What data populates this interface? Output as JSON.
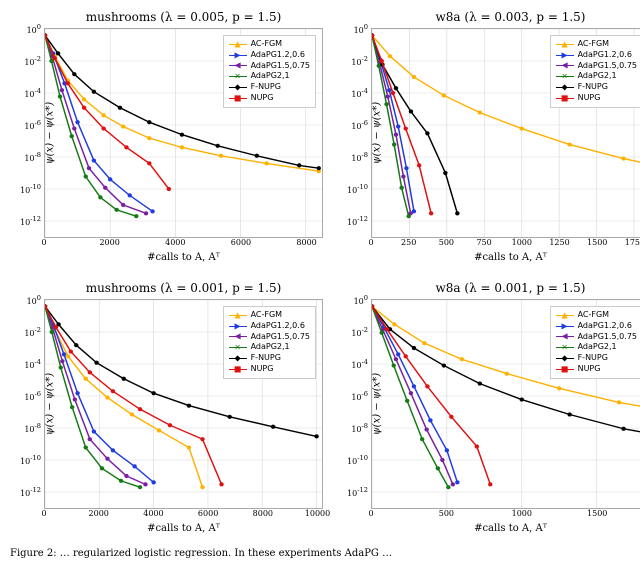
{
  "panels": [
    {
      "title": "mushrooms (λ = 0.005, p = 1.5)",
      "xlabel": "#calls to A, Aᵀ",
      "ylabel": "ψ(x) − ψ(x*)",
      "xlim": [
        0,
        8500
      ],
      "ylim": [
        1e-13,
        1
      ],
      "xtick_step": 2000,
      "ytick_exponents": [
        0,
        -2,
        -4,
        -6,
        -8,
        -10,
        -12
      ],
      "series": [
        {
          "name": "AC-FGM",
          "color": "#ffb100",
          "marker": "▲",
          "x": [
            0,
            300,
            700,
            1200,
            1800,
            2400,
            3200,
            4200,
            5400,
            6800,
            8400
          ],
          "y": [
            0.4,
            0.02,
            0.0006,
            4e-05,
            4e-06,
            8e-07,
            1.5e-07,
            4e-08,
            1.2e-08,
            4e-09,
            1.3e-09
          ]
        },
        {
          "name": "AdaPG1.2,0.6",
          "color": "#1f3cdf",
          "marker": "▶",
          "x": [
            0,
            250,
            600,
            1000,
            1500,
            2000,
            2600,
            3300
          ],
          "y": [
            0.4,
            0.03,
            0.0004,
            1.5e-06,
            6e-09,
            4e-10,
            4e-11,
            4e-12
          ]
        },
        {
          "name": "AdaPG1.5,0.75",
          "color": "#7a1fa2",
          "marker": "◀",
          "x": [
            0,
            220,
            520,
            900,
            1350,
            1850,
            2400,
            3100
          ],
          "y": [
            0.4,
            0.02,
            0.00015,
            6e-07,
            2e-09,
            1.2e-10,
            1e-11,
            3e-12
          ]
        },
        {
          "name": "AdaPG2,1",
          "color": "#147a14",
          "marker": "×",
          "x": [
            0,
            200,
            460,
            820,
            1250,
            1700,
            2200,
            2800
          ],
          "y": [
            0.4,
            0.01,
            6e-05,
            2e-07,
            6e-10,
            3e-11,
            5e-12,
            2e-12
          ]
        },
        {
          "name": "F-NUPG",
          "color": "#000000",
          "marker": "◆",
          "x": [
            0,
            400,
            900,
            1500,
            2300,
            3200,
            4200,
            5300,
            6500,
            7800,
            8400
          ],
          "y": [
            0.4,
            0.03,
            0.0015,
            0.00012,
            1.2e-05,
            1.5e-06,
            2.5e-07,
            5e-08,
            1.2e-08,
            3e-09,
            2e-09
          ]
        },
        {
          "name": "NUPG",
          "color": "#e01010",
          "marker": "■",
          "x": [
            0,
            300,
            700,
            1200,
            1800,
            2500,
            3200,
            3800
          ],
          "y": [
            0.4,
            0.015,
            0.0004,
            1.2e-05,
            6e-07,
            4e-08,
            4e-09,
            1e-10
          ]
        }
      ]
    },
    {
      "title": "w8a (λ = 0.003, p = 1.5)",
      "xlabel": "#calls to A, Aᵀ",
      "ylabel": "ψ(x) − ψ(x*)",
      "xlim": [
        0,
        1850
      ],
      "ylim": [
        1e-13,
        1
      ],
      "xtick_step": 250,
      "ytick_exponents": [
        0,
        -2,
        -4,
        -6,
        -8,
        -10,
        -12
      ],
      "series": [
        {
          "name": "AC-FGM",
          "color": "#ffb100",
          "marker": "▲",
          "x": [
            0,
            120,
            280,
            480,
            720,
            1000,
            1320,
            1680,
            1830
          ],
          "y": [
            0.4,
            0.02,
            0.001,
            7e-05,
            6e-06,
            6e-07,
            6e-08,
            8e-09,
            4e-09
          ]
        },
        {
          "name": "AdaPG1.2,0.6",
          "color": "#1f3cdf",
          "marker": "▶",
          "x": [
            0,
            55,
            115,
            175,
            230,
            280
          ],
          "y": [
            0.4,
            0.012,
            0.00015,
            8e-07,
            2e-09,
            4e-12
          ]
        },
        {
          "name": "AdaPG1.5,0.75",
          "color": "#7a1fa2",
          "marker": "◀",
          "x": [
            0,
            50,
            105,
            160,
            210,
            258
          ],
          "y": [
            0.4,
            0.008,
            6e-05,
            2.5e-07,
            6e-10,
            3e-12
          ]
        },
        {
          "name": "AdaPG2,1",
          "color": "#147a14",
          "marker": "×",
          "x": [
            0,
            45,
            97,
            148,
            198,
            245
          ],
          "y": [
            0.4,
            0.005,
            2e-05,
            6e-08,
            1.2e-10,
            2e-12
          ]
        },
        {
          "name": "F-NUPG",
          "color": "#000000",
          "marker": "◆",
          "x": [
            0,
            70,
            160,
            260,
            370,
            490,
            570
          ],
          "y": [
            0.4,
            0.006,
            0.0002,
            7e-06,
            3e-07,
            1e-09,
            3e-12
          ]
        },
        {
          "name": "NUPG",
          "color": "#e01010",
          "marker": "■",
          "x": [
            0,
            65,
            140,
            225,
            315,
            395
          ],
          "y": [
            0.4,
            0.01,
            0.0001,
            6e-07,
            3e-09,
            3e-12
          ]
        }
      ]
    },
    {
      "title": "mushrooms (λ = 0.001, p = 1.5)",
      "xlabel": "#calls to A, Aᵀ",
      "ylabel": "ψ(x) − ψ(x*)",
      "xlim": [
        0,
        10200
      ],
      "ylim": [
        1e-13,
        1
      ],
      "xtick_step": 2000,
      "ytick_exponents": [
        0,
        -2,
        -4,
        -6,
        -8,
        -10,
        -12
      ],
      "series": [
        {
          "name": "AC-FGM",
          "color": "#ffb100",
          "marker": "▲",
          "x": [
            0,
            350,
            850,
            1500,
            2300,
            3200,
            4200,
            5300,
            5800
          ],
          "y": [
            0.4,
            0.015,
            0.0003,
            1.2e-05,
            8e-07,
            7e-08,
            7e-09,
            6e-10,
            2e-12
          ]
        },
        {
          "name": "AdaPG1.2,0.6",
          "color": "#1f3cdf",
          "marker": "▶",
          "x": [
            0,
            300,
            700,
            1200,
            1800,
            2500,
            3300,
            4000
          ],
          "y": [
            0.4,
            0.03,
            0.0004,
            1.5e-06,
            6e-09,
            4e-10,
            4e-11,
            4e-12
          ]
        },
        {
          "name": "AdaPG1.5,0.75",
          "color": "#7a1fa2",
          "marker": "◀",
          "x": [
            0,
            270,
            640,
            1100,
            1650,
            2300,
            3000,
            3700
          ],
          "y": [
            0.4,
            0.02,
            0.00015,
            6e-07,
            2e-09,
            1.2e-10,
            1e-11,
            3e-12
          ]
        },
        {
          "name": "AdaPG2,1",
          "color": "#147a14",
          "marker": "×",
          "x": [
            0,
            250,
            580,
            1000,
            1500,
            2100,
            2800,
            3500
          ],
          "y": [
            0.4,
            0.01,
            6e-05,
            2e-07,
            6e-10,
            3e-11,
            5e-12,
            2e-12
          ]
        },
        {
          "name": "F-NUPG",
          "color": "#000000",
          "marker": "◆",
          "x": [
            0,
            500,
            1150,
            1900,
            2900,
            4000,
            5300,
            6800,
            8400,
            10000
          ],
          "y": [
            0.4,
            0.03,
            0.0015,
            0.00012,
            1.2e-05,
            1.5e-06,
            2.5e-07,
            5e-08,
            1.2e-08,
            3e-09
          ]
        },
        {
          "name": "NUPG",
          "color": "#e01010",
          "marker": "■",
          "x": [
            0,
            400,
            950,
            1650,
            2500,
            3500,
            4600,
            5800,
            6500
          ],
          "y": [
            0.4,
            0.02,
            0.0006,
            3e-05,
            2e-06,
            1.5e-07,
            1.5e-08,
            2e-09,
            3e-12
          ]
        }
      ]
    },
    {
      "title": "w8a (λ = 0.001, p = 1.5)",
      "xlabel": "#calls to A, Aᵀ",
      "ylabel": "ψ(x) − ψ(x*)",
      "xlim": [
        0,
        1850
      ],
      "ylim": [
        1e-13,
        1
      ],
      "xtick_step": 500,
      "ytick_exponents": [
        0,
        -2,
        -4,
        -6,
        -8,
        -10,
        -12
      ],
      "series": [
        {
          "name": "AC-FGM",
          "color": "#ffb100",
          "marker": "▲",
          "x": [
            0,
            150,
            350,
            600,
            900,
            1250,
            1650,
            1830
          ],
          "y": [
            0.4,
            0.03,
            0.002,
            0.0002,
            2.5e-05,
            3e-06,
            4e-07,
            2e-07
          ]
        },
        {
          "name": "AdaPG1.2,0.6",
          "color": "#1f3cdf",
          "marker": "▶",
          "x": [
            0,
            80,
            175,
            280,
            390,
            500,
            570
          ],
          "y": [
            0.4,
            0.02,
            0.0004,
            4e-06,
            3e-08,
            4e-10,
            4e-12
          ]
        },
        {
          "name": "AdaPG1.5,0.75",
          "color": "#7a1fa2",
          "marker": "◀",
          "x": [
            0,
            72,
            160,
            260,
            365,
            470,
            540
          ],
          "y": [
            0.4,
            0.014,
            0.0002,
            1.5e-06,
            8e-09,
            1e-10,
            3e-12
          ]
        },
        {
          "name": "AdaPG2,1",
          "color": "#147a14",
          "marker": "×",
          "x": [
            0,
            65,
            145,
            235,
            335,
            440,
            510
          ],
          "y": [
            0.4,
            0.009,
            8e-05,
            5e-07,
            2e-09,
            3e-11,
            2e-12
          ]
        },
        {
          "name": "F-NUPG",
          "color": "#000000",
          "marker": "◆",
          "x": [
            0,
            120,
            280,
            480,
            720,
            1000,
            1320,
            1680,
            1830
          ],
          "y": [
            0.4,
            0.015,
            0.001,
            8e-05,
            6e-06,
            6e-07,
            7e-08,
            9e-09,
            5e-09
          ]
        },
        {
          "name": "NUPG",
          "color": "#e01010",
          "marker": "■",
          "x": [
            0,
            100,
            225,
            370,
            530,
            700,
            790
          ],
          "y": [
            0.4,
            0.015,
            0.0003,
            4e-06,
            5e-08,
            7e-10,
            3e-12
          ]
        }
      ]
    }
  ],
  "legend_common": [
    {
      "label": "AC-FGM",
      "color": "#ffb100",
      "marker": "▲"
    },
    {
      "label": "AdaPG1.2,0.6",
      "color": "#1f3cdf",
      "marker": "▶"
    },
    {
      "label": "AdaPG1.5,0.75",
      "color": "#7a1fa2",
      "marker": "◀"
    },
    {
      "label": "AdaPG2,1",
      "color": "#147a14",
      "marker": "×"
    },
    {
      "label": "F-NUPG",
      "color": "#000000",
      "marker": "◆"
    },
    {
      "label": "NUPG",
      "color": "#e01010",
      "marker": "■"
    }
  ],
  "styling": {
    "grid_color": "#d9d9d9",
    "background_color": "#ffffff",
    "axis_color": "#606060",
    "line_width": 1.4,
    "marker_size": 5,
    "title_fontsize": 12,
    "label_fontsize": 10,
    "tick_fontsize": 8,
    "legend_fontsize": 8
  },
  "caption_fragment": "Figure 2: … regularized logistic regression. In these experiments AdaPG …"
}
